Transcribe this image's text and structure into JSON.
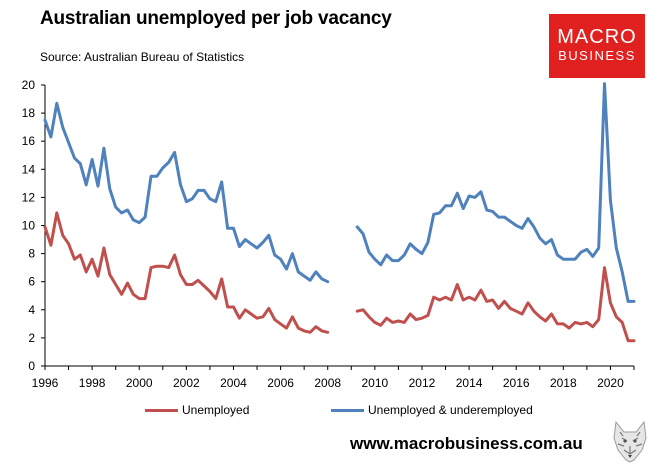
{
  "header": {
    "title": "Australian unemployed per job vacancy",
    "subtitle": "Source: Australian Bureau of Statistics"
  },
  "logo": {
    "line1": "MACRO",
    "line2": "BUSINESS"
  },
  "footer": {
    "website": "www.macrobusiness.com.au"
  },
  "colors": {
    "unemployed": "#c0504d",
    "underemployed": "#4f81bd",
    "brand": "#e1211f"
  },
  "icons": {
    "mascot": "wolf-head-icon"
  },
  "chart_data": {
    "type": "line",
    "title": "Australian unemployed per job vacancy",
    "subtitle": "Source: Australian Bureau of Statistics",
    "xlim": [
      1996,
      2021
    ],
    "ylim": [
      0,
      20
    ],
    "x_ticks": [
      "1996",
      "1998",
      "2000",
      "2002",
      "2004",
      "2006",
      "2008",
      "2010",
      "2012",
      "2014",
      "2016",
      "2018",
      "2020"
    ],
    "y_ticks": [
      "0",
      "2",
      "4",
      "6",
      "8",
      "10",
      "12",
      "14",
      "16",
      "18",
      "20"
    ],
    "grid": false,
    "legend_position": "bottom",
    "series": [
      {
        "name": "Unemployed",
        "color": "#c0504d",
        "segments": [
          {
            "x": [
              1996.0,
              1996.25,
              1996.5,
              1996.75,
              1997.0,
              1997.25,
              1997.5,
              1997.75,
              1998.0,
              1998.25,
              1998.5,
              1998.75,
              1999.0,
              1999.25,
              1999.5,
              1999.75,
              2000.0,
              2000.25,
              2000.5,
              2000.75,
              2001.0,
              2001.25,
              2001.5,
              2001.75,
              2002.0,
              2002.25,
              2002.5,
              2002.75,
              2003.0,
              2003.25,
              2003.5,
              2003.75,
              2004.0,
              2004.25,
              2004.5,
              2004.75,
              2005.0,
              2005.25,
              2005.5,
              2005.75,
              2006.0,
              2006.25,
              2006.5,
              2006.75,
              2007.0,
              2007.25,
              2007.5,
              2007.75,
              2008.0
            ],
            "y": [
              9.9,
              8.6,
              10.9,
              9.3,
              8.7,
              7.6,
              7.9,
              6.7,
              7.6,
              6.4,
              8.4,
              6.5,
              5.8,
              5.1,
              5.9,
              5.1,
              4.8,
              4.8,
              7.0,
              7.1,
              7.1,
              7.0,
              7.9,
              6.5,
              5.8,
              5.8,
              6.1,
              5.7,
              5.3,
              4.8,
              6.2,
              4.2,
              4.2,
              3.4,
              4.0,
              3.7,
              3.4,
              3.5,
              4.1,
              3.3,
              3.0,
              2.7,
              3.5,
              2.7,
              2.5,
              2.4,
              2.8,
              2.5,
              2.4
            ]
          },
          {
            "x": [
              2009.25,
              2009.5,
              2009.75,
              2010.0,
              2010.25,
              2010.5,
              2010.75,
              2011.0,
              2011.25,
              2011.5,
              2011.75,
              2012.0,
              2012.25,
              2012.5,
              2012.75,
              2013.0,
              2013.25,
              2013.5,
              2013.75,
              2014.0,
              2014.25,
              2014.5,
              2014.75,
              2015.0,
              2015.25,
              2015.5,
              2015.75,
              2016.0,
              2016.25,
              2016.5,
              2016.75,
              2017.0,
              2017.25,
              2017.5,
              2017.75,
              2018.0,
              2018.25,
              2018.5,
              2018.75,
              2019.0,
              2019.25,
              2019.5,
              2019.75,
              2020.0,
              2020.25,
              2020.5,
              2020.75,
              2021.0
            ],
            "y": [
              3.9,
              4.0,
              3.5,
              3.1,
              2.9,
              3.4,
              3.1,
              3.2,
              3.1,
              3.7,
              3.3,
              3.4,
              3.6,
              4.9,
              4.7,
              4.9,
              4.7,
              5.8,
              4.7,
              4.9,
              4.7,
              5.4,
              4.6,
              4.7,
              4.1,
              4.6,
              4.1,
              3.9,
              3.7,
              4.5,
              3.9,
              3.5,
              3.2,
              3.7,
              3.0,
              3.0,
              2.7,
              3.1,
              3.0,
              3.1,
              2.8,
              3.3,
              7.0,
              4.5,
              3.5,
              3.1,
              1.8,
              1.8
            ]
          }
        ]
      },
      {
        "name": "Unemployed & underemployed",
        "color": "#4f81bd",
        "segments": [
          {
            "x": [
              1996.0,
              1996.25,
              1996.5,
              1996.75,
              1997.0,
              1997.25,
              1997.5,
              1997.75,
              1998.0,
              1998.25,
              1998.5,
              1998.75,
              1999.0,
              1999.25,
              1999.5,
              1999.75,
              2000.0,
              2000.25,
              2000.5,
              2000.75,
              2001.0,
              2001.25,
              2001.5,
              2001.75,
              2002.0,
              2002.25,
              2002.5,
              2002.75,
              2003.0,
              2003.25,
              2003.5,
              2003.75,
              2004.0,
              2004.25,
              2004.5,
              2004.75,
              2005.0,
              2005.25,
              2005.5,
              2005.75,
              2006.0,
              2006.25,
              2006.5,
              2006.75,
              2007.0,
              2007.25,
              2007.5,
              2007.75,
              2008.0
            ],
            "y": [
              17.5,
              16.3,
              18.7,
              17.0,
              15.9,
              14.8,
              14.4,
              12.9,
              14.7,
              12.8,
              15.5,
              12.6,
              11.3,
              10.9,
              11.1,
              10.4,
              10.2,
              10.6,
              13.5,
              13.5,
              14.1,
              14.5,
              15.2,
              12.9,
              11.7,
              11.9,
              12.5,
              12.5,
              11.9,
              11.7,
              13.1,
              9.8,
              9.8,
              8.5,
              9.0,
              8.7,
              8.4,
              8.8,
              9.3,
              7.9,
              7.6,
              6.9,
              8.0,
              6.7,
              6.4,
              6.1,
              6.7,
              6.2,
              6.0
            ]
          },
          {
            "x": [
              2009.25,
              2009.5,
              2009.75,
              2010.0,
              2010.25,
              2010.5,
              2010.75,
              2011.0,
              2011.25,
              2011.5,
              2011.75,
              2012.0,
              2012.25,
              2012.5,
              2012.75,
              2013.0,
              2013.25,
              2013.5,
              2013.75,
              2014.0,
              2014.25,
              2014.5,
              2014.75,
              2015.0,
              2015.25,
              2015.5,
              2015.75,
              2016.0,
              2016.25,
              2016.5,
              2016.75,
              2017.0,
              2017.25,
              2017.5,
              2017.75,
              2018.0,
              2018.25,
              2018.5,
              2018.75,
              2019.0,
              2019.25,
              2019.5,
              2019.75,
              2020.0,
              2020.25,
              2020.5,
              2020.75,
              2021.0
            ],
            "y": [
              9.9,
              9.4,
              8.1,
              7.6,
              7.2,
              7.9,
              7.5,
              7.5,
              7.9,
              8.7,
              8.3,
              8.0,
              8.8,
              10.8,
              10.9,
              11.4,
              11.4,
              12.3,
              11.2,
              12.1,
              12.0,
              12.4,
              11.1,
              11.0,
              10.6,
              10.6,
              10.3,
              10.0,
              9.8,
              10.5,
              9.9,
              9.1,
              8.7,
              9.0,
              7.9,
              7.6,
              7.6,
              7.6,
              8.1,
              8.3,
              7.8,
              8.4,
              20.1,
              11.8,
              8.4,
              6.7,
              4.6,
              4.6
            ]
          }
        ]
      }
    ]
  }
}
